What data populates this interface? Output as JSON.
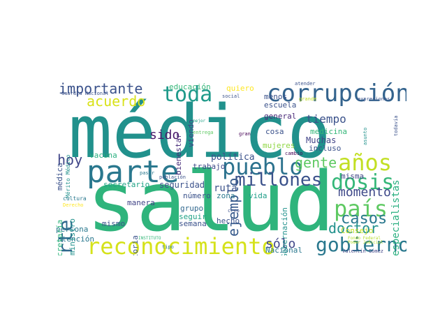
{
  "cloud": {
    "words": [
      {
        "text": "médico",
        "color": "#21918c"
      },
      {
        "text": "salud",
        "color": "#2fb47c"
      },
      {
        "text": "parte",
        "color": "#2a788e"
      },
      {
        "text": "reconocimiento",
        "color": "#d5e21a"
      },
      {
        "text": "corrupción",
        "color": "#33638d"
      },
      {
        "text": "pueblo",
        "color": "#2c728e"
      },
      {
        "text": "años",
        "color": "#c2df23"
      },
      {
        "text": "país",
        "color": "#5ec962"
      },
      {
        "text": "gobierno",
        "color": "#2a788e"
      },
      {
        "text": "dosis",
        "color": "#35b779"
      },
      {
        "text": "millones",
        "color": "#3b528b"
      },
      {
        "text": "toda",
        "color": "#1f9a8a"
      },
      {
        "text": "importante",
        "color": "#3b528b"
      },
      {
        "text": "acuerdo",
        "color": "#d8e219"
      },
      {
        "text": "corte",
        "color": "#31688e"
      },
      {
        "text": "hoy",
        "color": "#404688"
      },
      {
        "text": "sido",
        "color": "#48186a"
      },
      {
        "text": "ejemplo",
        "color": "#375a8c"
      },
      {
        "text": "gente",
        "color": "#5ec962"
      },
      {
        "text": "casos",
        "color": "#2a788e"
      },
      {
        "text": "momento",
        "color": "#3e4989"
      },
      {
        "text": "doctor",
        "color": "#21918c"
      },
      {
        "text": "sólo",
        "color": "#404688"
      },
      {
        "text": "tiempo",
        "color": "#3b528b"
      },
      {
        "text": "especialistas",
        "color": "#29af7f"
      },
      {
        "text": "Muchas",
        "color": "#414487"
      },
      {
        "text": "escuela",
        "color": "#3b528b"
      },
      {
        "text": "general",
        "color": "#482878"
      },
      {
        "text": "educación",
        "color": "#35b779"
      },
      {
        "text": "quiero",
        "color": "#fde725"
      },
      {
        "text": "vacuna",
        "color": "#29af7f"
      },
      {
        "text": "bienestar",
        "color": "#472c7a"
      },
      {
        "text": "viendo",
        "color": "#414487"
      },
      {
        "text": "política",
        "color": "#3b528b"
      },
      {
        "text": "trabajo",
        "color": "#3e4989"
      },
      {
        "text": "ruta",
        "color": "#3b528b"
      },
      {
        "text": "secretario",
        "color": "#20a386"
      },
      {
        "text": "seguridad",
        "color": "#3b528b"
      },
      {
        "text": "número",
        "color": "#3b528b"
      },
      {
        "text": "zona",
        "color": "#2a788e"
      },
      {
        "text": "vida",
        "color": "#1f9e89"
      },
      {
        "text": "manera",
        "color": "#414487"
      },
      {
        "text": "grupo",
        "color": "#31688e"
      },
      {
        "text": "semana",
        "color": "#3b528b"
      },
      {
        "text": "seguir",
        "color": "#20a386"
      },
      {
        "text": "hecho",
        "color": "#3b528b"
      },
      {
        "text": "mismo",
        "color": "#3b528b"
      },
      {
        "text": "persona",
        "color": "#2a788e"
      },
      {
        "text": "atención",
        "color": "#2a788e"
      },
      {
        "text": "historia",
        "color": "#3b528b"
      },
      {
        "text": "incluso",
        "color": "#3b528b"
      },
      {
        "text": "mujeres",
        "color": "#8fd744"
      },
      {
        "text": "cosa",
        "color": "#3b528b"
      },
      {
        "text": "medicina",
        "color": "#35b779"
      },
      {
        "text": "menos",
        "color": "#3b528b"
      },
      {
        "text": "misma",
        "color": "#404688"
      },
      {
        "text": "Nacional",
        "color": "#2a788e"
      },
      {
        "text": "Consejo",
        "color": "#c8e020"
      },
      {
        "text": "Gobernación",
        "color": "#21918c"
      },
      {
        "text": "Secretaría",
        "color": "#2fb47c"
      },
      {
        "text": "ministro",
        "color": "#21918c"
      },
      {
        "text": "médica",
        "color": "#3b528b"
      },
      {
        "text": "Mérito Médico",
        "color": "#21918c"
      },
      {
        "text": "cultura",
        "color": "#2a788e"
      },
      {
        "text": "Guardia Nacional",
        "color": "#3b528b"
      },
      {
        "text": "Derecho",
        "color": "#fde725"
      },
      {
        "text": "tipo",
        "color": "#2a788e"
      },
      {
        "text": "INSTITUTO",
        "color": "#35b779"
      },
      {
        "text": "Valentín Gómez",
        "color": "#414487"
      },
      {
        "text": "Poder Judicial",
        "color": "#b5de2b"
      },
      {
        "text": "creo",
        "color": "#3b528b"
      },
      {
        "text": "población",
        "color": "#3b528b"
      },
      {
        "text": "pasar",
        "color": "#2a788e"
      },
      {
        "text": "cambio",
        "color": "#440154"
      },
      {
        "text": "entrega",
        "color": "#5ec962"
      },
      {
        "text": "mejor",
        "color": "#20a386"
      },
      {
        "text": "gran",
        "color": "#440154"
      },
      {
        "text": "social",
        "color": "#3b528b"
      },
      {
        "text": "atender",
        "color": "#3b528b"
      },
      {
        "text": "grande",
        "color": "#c2df23"
      },
      {
        "text": "expresiones",
        "color": "#3b528b"
      },
      {
        "text": "todavía",
        "color": "#3b528b"
      },
      {
        "text": "asunto",
        "color": "#21918c"
      },
      {
        "text": "Fondo Federal",
        "color": "#b5de2b"
      }
    ]
  }
}
